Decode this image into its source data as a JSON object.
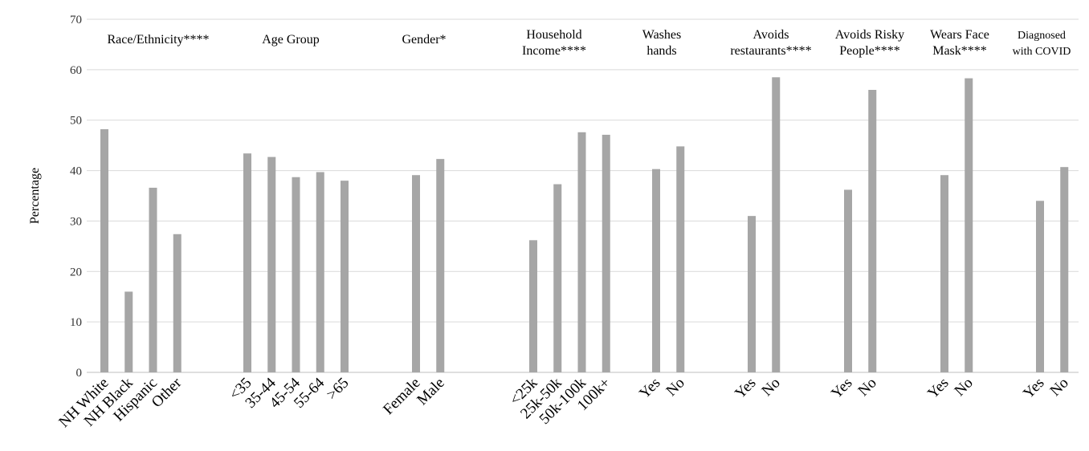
{
  "chart_data": {
    "type": "bar",
    "ylabel": "Percentage",
    "ylim": [
      0,
      70
    ],
    "yticks": [
      0,
      10,
      20,
      30,
      40,
      50,
      60,
      70
    ],
    "grid": true,
    "bar_color": "#a6a6a6",
    "grid_color": "#d9d9d9",
    "groups": [
      {
        "label_lines": [
          "Race/Ethnicity****"
        ],
        "categories": [
          "NH White",
          "NH Black",
          "Hispanic",
          "Other"
        ],
        "values": [
          48.2,
          16.0,
          36.6,
          27.4
        ]
      },
      {
        "label_lines": [
          "Age Group"
        ],
        "categories": [
          "<35",
          "35-44",
          "45-54",
          "55-64",
          ">65"
        ],
        "values": [
          43.4,
          42.7,
          38.7,
          39.7,
          38.0
        ]
      },
      {
        "label_lines": [
          "Gender*"
        ],
        "categories": [
          "Female",
          "Male"
        ],
        "values": [
          39.1,
          42.3
        ]
      },
      {
        "label_lines": [
          "Household",
          "Income****"
        ],
        "categories": [
          "<25k",
          "25k-50k",
          "50k-100k",
          "100k+"
        ],
        "values": [
          26.2,
          37.3,
          47.6,
          47.1
        ]
      },
      {
        "label_lines": [
          "Washes",
          "hands"
        ],
        "categories": [
          "Yes",
          "No"
        ],
        "values": [
          40.3,
          44.8
        ]
      },
      {
        "label_lines": [
          "Avoids",
          "restaurants****"
        ],
        "categories": [
          "Yes",
          "No"
        ],
        "values": [
          31.0,
          58.5
        ]
      },
      {
        "label_lines": [
          "Avoids Risky",
          "People****"
        ],
        "categories": [
          "Yes",
          "No"
        ],
        "values": [
          36.2,
          56.0
        ]
      },
      {
        "label_lines": [
          "Wears Face",
          "Mask****"
        ],
        "categories": [
          "Yes",
          "No"
        ],
        "values": [
          39.1,
          58.3
        ]
      },
      {
        "label_lines": [
          "Diagnosed",
          "with COVID"
        ],
        "categories": [
          "Yes",
          "No"
        ],
        "values": [
          34.0,
          40.7
        ]
      }
    ]
  }
}
